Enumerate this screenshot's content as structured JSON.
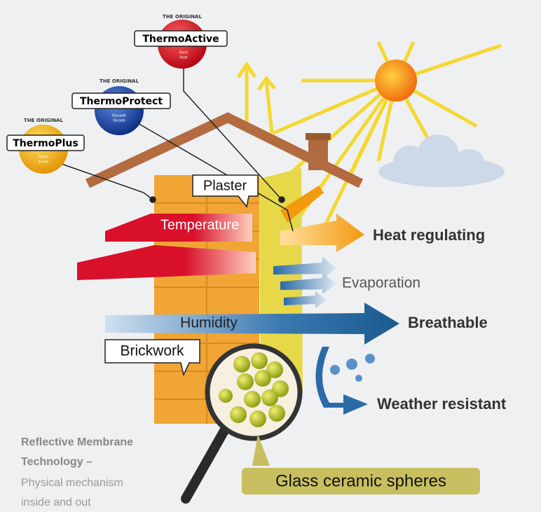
{
  "badges": [
    {
      "top": "THE ORIGINAL",
      "name": "ThermoActive",
      "sub1": "Dach",
      "sub2": "Roof"
    },
    {
      "top": "THE ORIGINAL",
      "name": "ThermoProtect",
      "sub1": "Fassade",
      "sub2": "Facade"
    },
    {
      "top": "THE ORIGINAL",
      "name": "ThermoPlus",
      "sub1": "Innen",
      "sub2": "Inside"
    }
  ],
  "labels": {
    "plaster": "Plaster",
    "temperature": "Temperature",
    "heat": "Heat regulating",
    "evaporation": "Evaporation",
    "humidity": "Humidity",
    "breathable": "Breathable",
    "brickwork": "Brickwork",
    "weather": "Weather resistant",
    "spheres": "Glass ceramic spheres"
  },
  "caption": {
    "line1": "Reflective Membrane",
    "line2": "Technology –",
    "line3": "Physical mechanism",
    "line4": "inside and out"
  }
}
